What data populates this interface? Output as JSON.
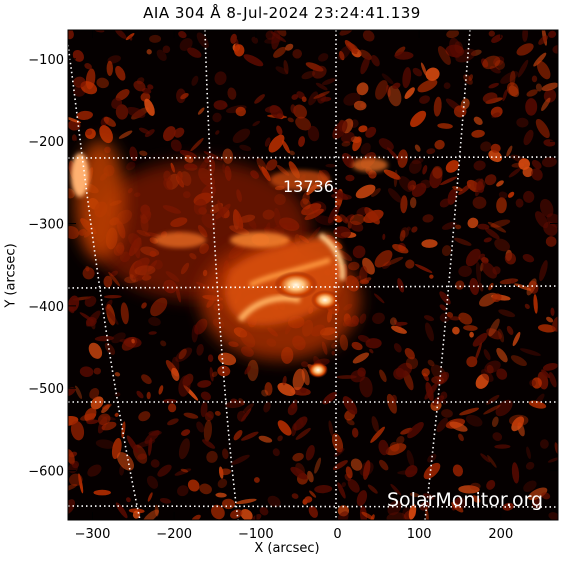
{
  "title": "AIA 304 Å  8-Jul-2024 23:24:41.139",
  "axes": {
    "xlabel": "X (arcsec)",
    "ylabel": "Y (arcsec)",
    "xlim": [
      -330,
      270
    ],
    "ylim": [
      -660,
      -65
    ],
    "xticks": [
      -300,
      -200,
      -100,
      0,
      100,
      200
    ],
    "yticks": [
      -100,
      -200,
      -300,
      -400,
      -500,
      -600
    ]
  },
  "region_label": "13736",
  "credit": "SolarMonitor.org",
  "colors": {
    "background": "#000000",
    "plasma_dark": "#5a0a00",
    "plasma_mid": "#c03000",
    "plasma_bright": "#ff9a40",
    "plasma_core": "#fff6d8",
    "grid": "#ffffff"
  }
}
